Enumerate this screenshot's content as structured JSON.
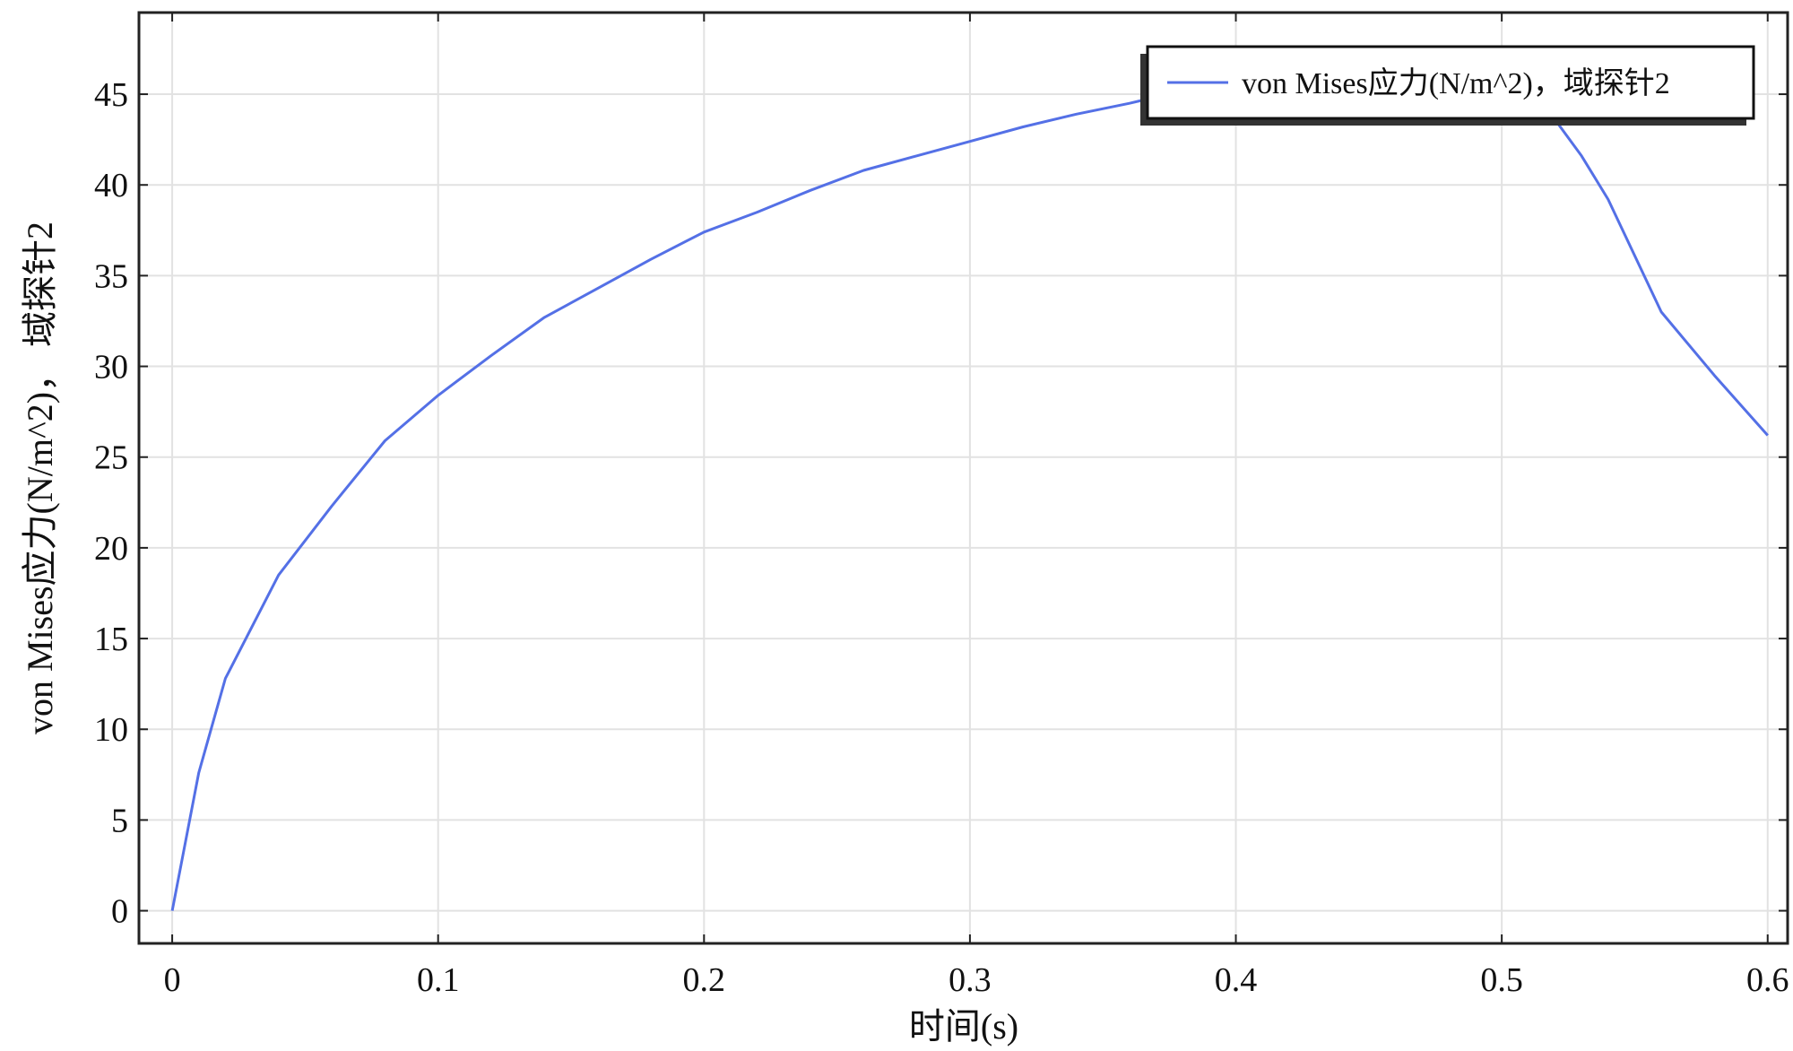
{
  "chart_data": {
    "type": "line",
    "xlabel": "时间(s)",
    "ylabel": "von Mises应力(N/m^2)， 域探针2",
    "xlim": [
      -0.0125,
      0.6075
    ],
    "ylim": [
      -1.8,
      49.5
    ],
    "xticks": [
      0,
      0.1,
      0.2,
      0.3,
      0.4,
      0.5,
      0.6
    ],
    "xtick_labels": [
      "0",
      "0.1",
      "0.2",
      "0.3",
      "0.4",
      "0.5",
      "0.6"
    ],
    "yticks": [
      0,
      5,
      10,
      15,
      20,
      25,
      30,
      35,
      40,
      45
    ],
    "ytick_labels": [
      "0",
      "5",
      "10",
      "15",
      "20",
      "25",
      "30",
      "35",
      "40",
      "45"
    ],
    "grid": true,
    "legend": {
      "position": "top-right"
    },
    "series": [
      {
        "name": "von Mises应力(N/m^2)，域探针2",
        "color": "#5470e6",
        "x": [
          0,
          0.01,
          0.02,
          0.04,
          0.06,
          0.08,
          0.1,
          0.12,
          0.14,
          0.16,
          0.18,
          0.2,
          0.22,
          0.24,
          0.26,
          0.28,
          0.3,
          0.32,
          0.34,
          0.36,
          0.38,
          0.4,
          0.42,
          0.44,
          0.46,
          0.48,
          0.5,
          0.52,
          0.53,
          0.54,
          0.56,
          0.58,
          0.6
        ],
        "y": [
          0,
          7.6,
          12.8,
          18.5,
          22.3,
          25.9,
          28.4,
          30.6,
          32.7,
          34.3,
          35.9,
          37.4,
          38.5,
          39.7,
          40.8,
          41.6,
          42.4,
          43.2,
          43.9,
          44.5,
          45.2,
          45.8,
          46.3,
          46.6,
          46.8,
          46.6,
          45.6,
          43.6,
          41.6,
          39.2,
          33.0,
          29.5,
          26.2
        ]
      }
    ]
  }
}
